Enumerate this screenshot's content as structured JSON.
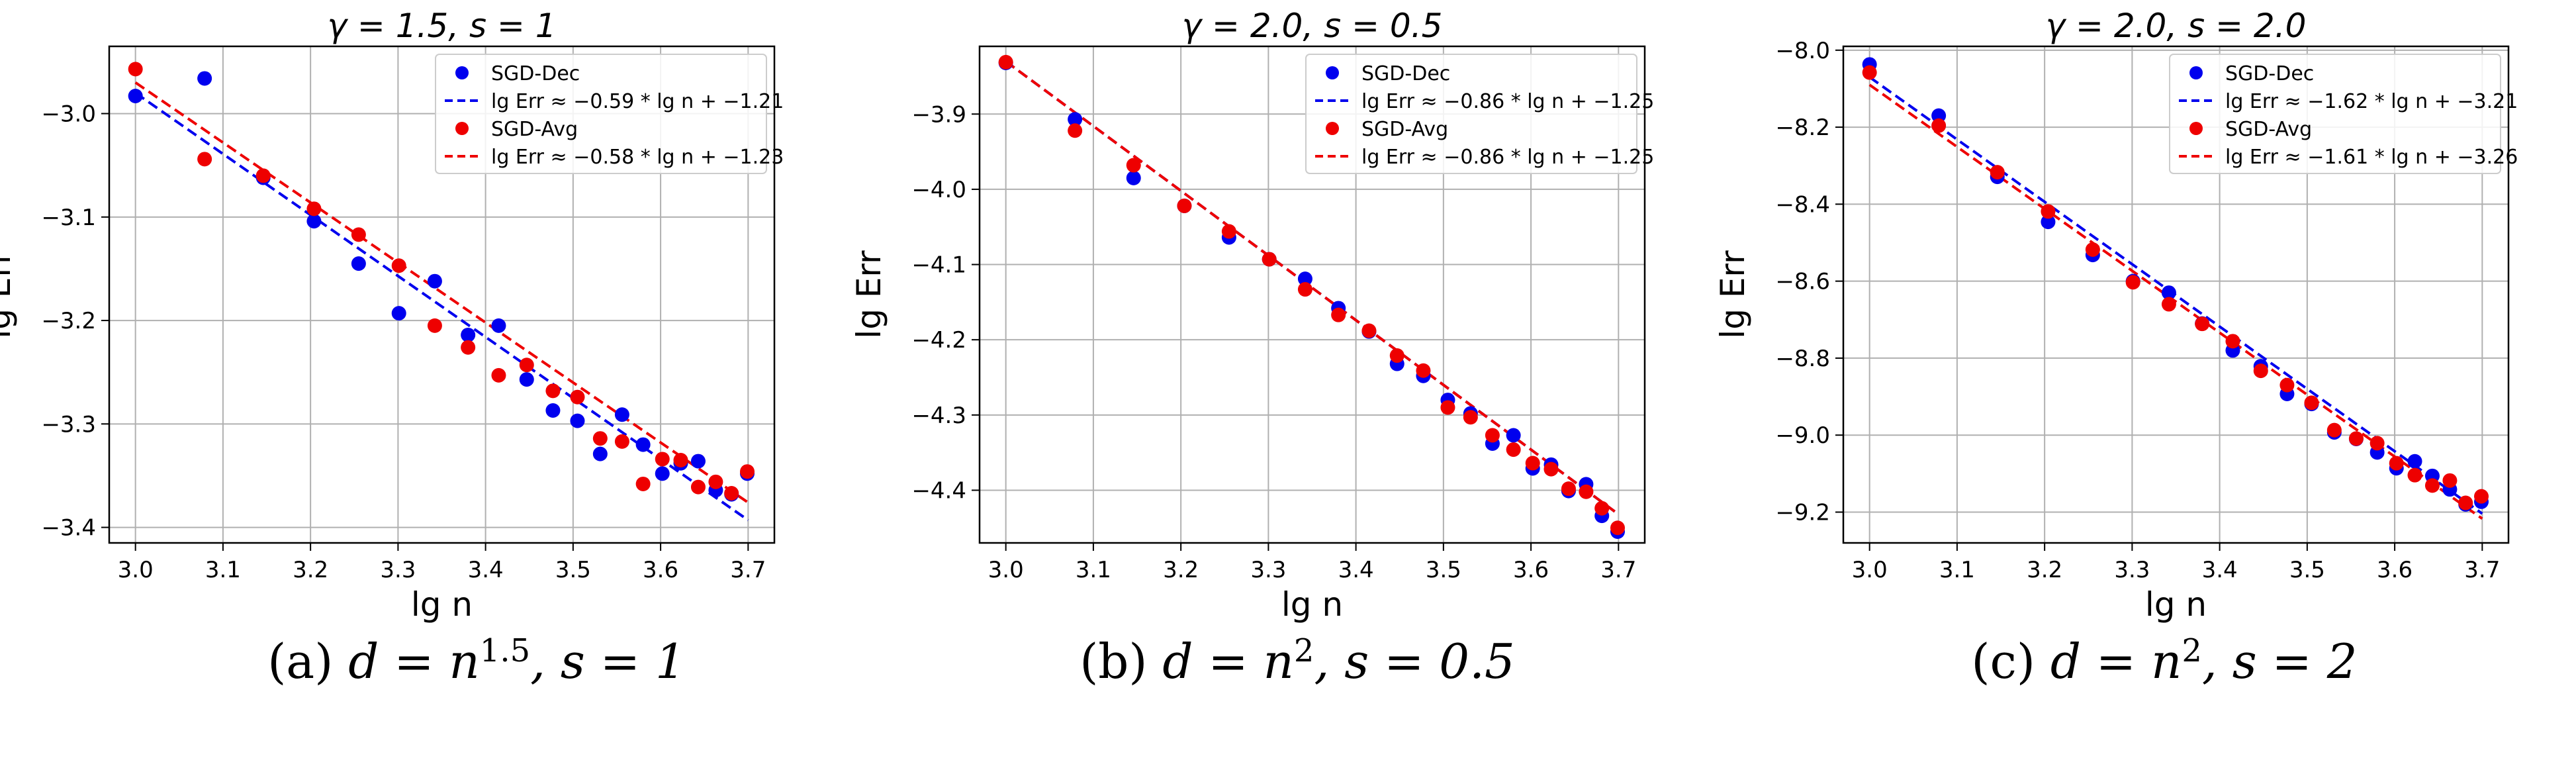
{
  "chart_data": [
    {
      "type": "scatter",
      "title": "γ = 1.5, s = 1",
      "xlabel": "lg n",
      "ylabel": "lg Err",
      "xlim": [
        2.97,
        3.73
      ],
      "ylim": [
        -3.415,
        -2.935
      ],
      "xticks": [
        3.0,
        3.1,
        3.2,
        3.3,
        3.4,
        3.5,
        3.6,
        3.7
      ],
      "xtick_labels": [
        "3.0",
        "3.1",
        "3.2",
        "3.3",
        "3.4",
        "3.5",
        "3.6",
        "3.7"
      ],
      "yticks": [
        -3.4,
        -3.3,
        -3.2,
        -3.1,
        -3.0
      ],
      "ytick_labels": [
        "−3.4",
        "−3.3",
        "−3.2",
        "−3.1",
        "−3.0"
      ],
      "grid": true,
      "legend_position": "top-right",
      "x": [
        3.0,
        3.079,
        3.146,
        3.204,
        3.255,
        3.301,
        3.342,
        3.38,
        3.415,
        3.447,
        3.477,
        3.505,
        3.531,
        3.556,
        3.58,
        3.602,
        3.623,
        3.643,
        3.663,
        3.681,
        3.699
      ],
      "series": [
        {
          "name": "SGD-Dec",
          "color": "#0000ee",
          "values": [
            -2.983,
            -2.966,
            -3.062,
            -3.104,
            -3.145,
            -3.193,
            -3.162,
            -3.214,
            -3.205,
            -3.257,
            -3.287,
            -3.297,
            -3.329,
            -3.291,
            -3.32,
            -3.348,
            -3.338,
            -3.336,
            -3.364,
            -3.368,
            -3.348
          ]
        },
        {
          "name": "SGD-Avg",
          "color": "#ee0000",
          "values": [
            -2.957,
            -3.044,
            -3.06,
            -3.092,
            -3.117,
            -3.147,
            -3.205,
            -3.226,
            -3.253,
            -3.243,
            -3.268,
            -3.274,
            -3.314,
            -3.317,
            -3.358,
            -3.334,
            -3.335,
            -3.361,
            -3.356,
            -3.367,
            -3.346
          ]
        }
      ],
      "fits": [
        {
          "name": "lg Err ≈ −0.59 * lg n + −1.21",
          "slope": -0.59,
          "intercept": -1.21,
          "color": "#0000ee"
        },
        {
          "name": "lg Err ≈ −0.58 * lg n + −1.23",
          "slope": -0.58,
          "intercept": -1.23,
          "color": "#ee0000"
        }
      ]
    },
    {
      "type": "scatter",
      "title": "γ = 2.0, s = 0.5",
      "xlabel": "lg n",
      "ylabel": "lg Err",
      "xlim": [
        2.97,
        3.73
      ],
      "ylim": [
        -4.47,
        -3.81
      ],
      "xticks": [
        3.0,
        3.1,
        3.2,
        3.3,
        3.4,
        3.5,
        3.6,
        3.7
      ],
      "xtick_labels": [
        "3.0",
        "3.1",
        "3.2",
        "3.3",
        "3.4",
        "3.5",
        "3.6",
        "3.7"
      ],
      "yticks": [
        -4.4,
        -4.3,
        -4.2,
        -4.1,
        -4.0,
        -3.9
      ],
      "ytick_labels": [
        "−4.4",
        "−4.3",
        "−4.2",
        "−4.1",
        "−4.0",
        "−3.9"
      ],
      "grid": true,
      "legend_position": "top-right",
      "x": [
        3.0,
        3.079,
        3.146,
        3.204,
        3.255,
        3.301,
        3.342,
        3.38,
        3.415,
        3.447,
        3.477,
        3.505,
        3.531,
        3.556,
        3.58,
        3.602,
        3.623,
        3.643,
        3.663,
        3.681,
        3.699
      ],
      "series": [
        {
          "name": "SGD-Dec",
          "color": "#0000ee",
          "values": [
            -3.832,
            -3.907,
            -3.985,
            -4.022,
            -4.064,
            -4.093,
            -4.119,
            -4.158,
            -4.189,
            -4.232,
            -4.248,
            -4.28,
            -4.298,
            -4.338,
            -4.327,
            -4.371,
            -4.366,
            -4.401,
            -4.392,
            -4.434,
            -4.455
          ]
        },
        {
          "name": "SGD-Avg",
          "color": "#ee0000",
          "values": [
            -3.831,
            -3.922,
            -3.968,
            -4.022,
            -4.056,
            -4.093,
            -4.133,
            -4.167,
            -4.188,
            -4.221,
            -4.241,
            -4.29,
            -4.303,
            -4.327,
            -4.346,
            -4.364,
            -4.372,
            -4.398,
            -4.402,
            -4.424,
            -4.45
          ]
        }
      ],
      "fits": [
        {
          "name": "lg Err ≈ −0.86 * lg n + −1.25",
          "slope": -0.86,
          "intercept": -1.25,
          "color": "#0000ee"
        },
        {
          "name": "lg Err ≈ −0.86 * lg n + −1.25",
          "slope": -0.86,
          "intercept": -1.25,
          "color": "#ee0000"
        }
      ]
    },
    {
      "type": "scatter",
      "title": "γ = 2.0, s = 2.0",
      "xlabel": "lg n",
      "ylabel": "lg Err",
      "xlim": [
        2.97,
        3.73
      ],
      "ylim": [
        -9.28,
        -7.99
      ],
      "xticks": [
        3.0,
        3.1,
        3.2,
        3.3,
        3.4,
        3.5,
        3.6,
        3.7
      ],
      "xtick_labels": [
        "3.0",
        "3.1",
        "3.2",
        "3.3",
        "3.4",
        "3.5",
        "3.6",
        "3.7"
      ],
      "yticks": [
        -9.2,
        -9.0,
        -8.8,
        -8.6,
        -8.4,
        -8.2,
        -8.0
      ],
      "ytick_labels": [
        "−9.2",
        "−9.0",
        "−8.8",
        "−8.6",
        "−8.4",
        "−8.2",
        "−8.0"
      ],
      "grid": true,
      "legend_position": "top-right",
      "x": [
        3.0,
        3.079,
        3.146,
        3.204,
        3.255,
        3.301,
        3.342,
        3.38,
        3.415,
        3.447,
        3.477,
        3.505,
        3.531,
        3.556,
        3.58,
        3.602,
        3.623,
        3.643,
        3.663,
        3.681,
        3.699
      ],
      "series": [
        {
          "name": "SGD-Dec",
          "color": "#0000ee",
          "values": [
            -8.037,
            -8.17,
            -8.329,
            -8.446,
            -8.532,
            -8.6,
            -8.63,
            -8.71,
            -8.78,
            -8.821,
            -8.893,
            -8.919,
            -8.993,
            -9.01,
            -9.045,
            -9.086,
            -9.068,
            -9.106,
            -9.141,
            -9.18,
            -9.173
          ]
        },
        {
          "name": "SGD-Avg",
          "color": "#ee0000",
          "values": [
            -8.058,
            -8.196,
            -8.317,
            -8.419,
            -8.518,
            -8.603,
            -8.66,
            -8.711,
            -8.756,
            -8.833,
            -8.87,
            -8.916,
            -8.987,
            -9.009,
            -9.021,
            -9.073,
            -9.104,
            -9.131,
            -9.118,
            -9.176,
            -9.159
          ]
        }
      ],
      "fits": [
        {
          "name": "lg Err ≈ −1.62 * lg n + −3.21",
          "slope": -1.62,
          "intercept": -3.21,
          "color": "#0000ee"
        },
        {
          "name": "lg Err ≈ −1.61 * lg n + −3.26",
          "slope": -1.61,
          "intercept": -3.26,
          "color": "#ee0000"
        }
      ]
    }
  ],
  "captions": [
    {
      "label": "(a) ",
      "math": "d = n",
      "exp": "1.5",
      "rest": ", s = 1"
    },
    {
      "label": "(b) ",
      "math": "d = n",
      "exp": "2",
      "rest": ", s = 0.5"
    },
    {
      "label": "(c) ",
      "math": "d = n",
      "exp": "2",
      "rest": ", s = 2"
    }
  ]
}
